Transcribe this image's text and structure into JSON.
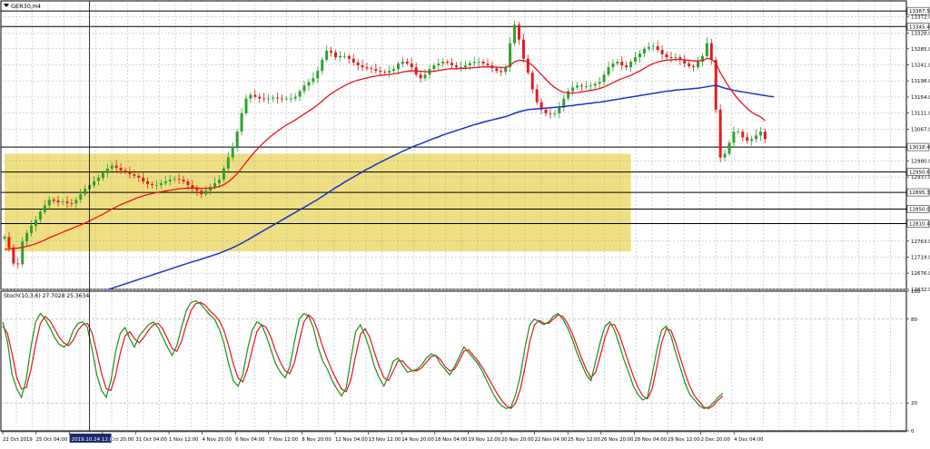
{
  "window": {
    "symbol_title": "GER30,H4"
  },
  "colors": {
    "bull": "#2e9f2e",
    "bear": "#e01b1b",
    "ma_fast": "#e8111e",
    "ma_slow": "#1533c9",
    "stoch_main": "#1a8f1a",
    "stoch_signal": "#e8111e",
    "zone": "#eedf82",
    "grid": "#a9a9a9"
  },
  "chart_data": [
    {
      "type": "candlestick",
      "symbol": "GER30,H4",
      "ylim": [
        12632.0,
        13415.0
      ],
      "y_ticks": [
        "13372.0",
        "13328.0",
        "13285.0",
        "13241.0",
        "13198.0",
        "13154.0",
        "13111.0",
        "13067.0",
        "12980.0",
        "12937.0",
        "12850.0",
        "12763.0",
        "12719.0",
        "12676.0",
        "12632.0"
      ],
      "horizontal_levels": [
        {
          "label": "13387.5",
          "value": 13387.5
        },
        {
          "label": "13345.4",
          "value": 13345.4
        },
        {
          "label": "13018.4",
          "value": 13018.4
        },
        {
          "label": "12950.6",
          "value": 12950.6
        },
        {
          "label": "12895.3",
          "value": 12895.3
        },
        {
          "label": "12850.0",
          "value": 12850.0
        },
        {
          "label": "12810.4",
          "value": 12810.4
        }
      ],
      "zone": {
        "x_from": 0,
        "x_to": 140,
        "y_from": 12735,
        "y_to": 13000
      },
      "x_ticks": [
        "22 Oct 2019",
        "25 Oct 04:00",
        "28 Oct 12:00",
        "29 Oct 20:00",
        "31 Oct 04:00",
        "1 Nov 12:00",
        "4 Nov 20:00",
        "6 Nov 04:00",
        "7 Nov 12:00",
        "8 Nov 20:00",
        "12 Nov 04:00",
        "13 Nov 12:00",
        "14 Nov 20:00",
        "18 Nov 04:00",
        "19 Nov 12:00",
        "20 Nov 20:00",
        "22 Nov 04:00",
        "25 Nov 12:00",
        "26 Nov 20:00",
        "28 Nov 04:00",
        "29 Nov 12:00",
        "2 Dec 20:00",
        "4 Dec 04:00"
      ],
      "crosshair_label": "2019.10.24 12:00",
      "crosshair_x": 19,
      "closes": [
        12775,
        12745,
        12702,
        12700,
        12762,
        12785,
        12805,
        12820,
        12843,
        12860,
        12875,
        12872,
        12868,
        12870,
        12866,
        12865,
        12875,
        12890,
        12905,
        12915,
        12925,
        12935,
        12948,
        12960,
        12968,
        12962,
        12955,
        12950,
        12945,
        12940,
        12935,
        12925,
        12918,
        12915,
        12915,
        12920,
        12925,
        12930,
        12932,
        12930,
        12925,
        12915,
        12905,
        12900,
        12890,
        12900,
        12910,
        12920,
        12930,
        12960,
        12990,
        13020,
        13060,
        13110,
        13150,
        13160,
        13155,
        13150,
        13148,
        13150,
        13152,
        13150,
        13149,
        13150,
        13150,
        13155,
        13170,
        13185,
        13195,
        13205,
        13225,
        13255,
        13280,
        13275,
        13262,
        13265,
        13265,
        13258,
        13248,
        13240,
        13235,
        13232,
        13230,
        13225,
        13222,
        13220,
        13225,
        13230,
        13245,
        13250,
        13245,
        13235,
        13215,
        13205,
        13215,
        13230,
        13240,
        13245,
        13250,
        13247,
        13240,
        13235,
        13235,
        13240,
        13246,
        13249,
        13250,
        13245,
        13240,
        13232,
        13225,
        13222,
        13235,
        13300,
        13350,
        13310,
        13258,
        13220,
        13175,
        13140,
        13120,
        13110,
        13108,
        13110,
        13125,
        13150,
        13170,
        13180,
        13185,
        13183,
        13183,
        13185,
        13190,
        13195,
        13215,
        13235,
        13245,
        13250,
        13240,
        13235,
        13250,
        13262,
        13272,
        13285,
        13290,
        13292,
        13282,
        13270,
        13262,
        13260,
        13262,
        13255,
        13245,
        13238,
        13235,
        13250,
        13265,
        13300,
        13255,
        13120,
        12990,
        13000,
        13030,
        13060,
        13060,
        13045,
        13035,
        13040,
        13050,
        13060,
        13040
      ],
      "opens": [
        12770,
        12774,
        12746,
        12702,
        12700,
        12762,
        12785,
        12804,
        12821,
        12842,
        12860,
        12876,
        12873,
        12868,
        12870,
        12866,
        12865,
        12876,
        12890,
        12904,
        12914,
        12926,
        12934,
        12948,
        12960,
        12968,
        12962,
        12955,
        12950,
        12944,
        12940,
        12935,
        12925,
        12918,
        12915,
        12915,
        12920,
        12925,
        12930,
        12932,
        12930,
        12925,
        12915,
        12905,
        12900,
        12890,
        12900,
        12910,
        12920,
        12930,
        12960,
        12990,
        13020,
        13060,
        13110,
        13150,
        13160,
        13155,
        13150,
        13148,
        13150,
        13152,
        13150,
        13149,
        13150,
        13150,
        13155,
        13170,
        13185,
        13195,
        13205,
        13225,
        13255,
        13280,
        13275,
        13262,
        13265,
        13265,
        13258,
        13248,
        13240,
        13235,
        13232,
        13230,
        13225,
        13222,
        13220,
        13225,
        13230,
        13245,
        13250,
        13245,
        13235,
        13215,
        13205,
        13215,
        13230,
        13240,
        13245,
        13250,
        13247,
        13240,
        13235,
        13235,
        13240,
        13246,
        13249,
        13250,
        13245,
        13240,
        13232,
        13225,
        13222,
        13235,
        13300,
        13350,
        13310,
        13258,
        13220,
        13175,
        13140,
        13120,
        13110,
        13108,
        13110,
        13125,
        13150,
        13170,
        13180,
        13185,
        13183,
        13183,
        13185,
        13190,
        13195,
        13215,
        13235,
        13245,
        13250,
        13240,
        13235,
        13250,
        13262,
        13272,
        13285,
        13290,
        13292,
        13282,
        13270,
        13262,
        13260,
        13262,
        13255,
        13245,
        13238,
        13235,
        13250,
        13265,
        13300,
        13255,
        13120,
        12990,
        13000,
        13030,
        13060,
        13060,
        13045,
        13035,
        13040,
        13050,
        13060
      ],
      "ma_fast": [
        12740,
        12742,
        12743,
        12744,
        12746,
        12749,
        12752,
        12756,
        12761,
        12766,
        12772,
        12777,
        12782,
        12787,
        12792,
        12797,
        12802,
        12807,
        12812,
        12818,
        12824,
        12830,
        12836,
        12843,
        12850,
        12856,
        12862,
        12867,
        12872,
        12877,
        12882,
        12886,
        12889,
        12892,
        12895,
        12897,
        12899,
        12901,
        12903,
        12905,
        12906,
        12907,
        12907,
        12907,
        12906,
        12906,
        12907,
        12908,
        12911,
        12916,
        12924,
        12934,
        12946,
        12961,
        12977,
        12992,
        13006,
        13019,
        13031,
        13042,
        13052,
        13061,
        13070,
        13078,
        13085,
        13092,
        13100,
        13108,
        13116,
        13124,
        13133,
        13143,
        13154,
        13163,
        13171,
        13178,
        13185,
        13191,
        13196,
        13200,
        13203,
        13206,
        13209,
        13211,
        13213,
        13214,
        13215,
        13217,
        13219,
        13222,
        13224,
        13225,
        13225,
        13224,
        13223,
        13223,
        13224,
        13226,
        13228,
        13230,
        13231,
        13231,
        13232,
        13232,
        13233,
        13234,
        13235,
        13236,
        13236,
        13236,
        13235,
        13234,
        13234,
        13240,
        13250,
        13254,
        13253,
        13249,
        13240,
        13228,
        13215,
        13202,
        13190,
        13180,
        13172,
        13167,
        13165,
        13165,
        13166,
        13168,
        13170,
        13172,
        13174,
        13177,
        13181,
        13187,
        13193,
        13199,
        13204,
        13208,
        13213,
        13219,
        13225,
        13232,
        13239,
        13245,
        13249,
        13252,
        13254,
        13255,
        13256,
        13256,
        13255,
        13254,
        13252,
        13252,
        13253,
        13258,
        13258,
        13245,
        13220,
        13200,
        13180,
        13163,
        13148,
        13135,
        13123,
        13113,
        13106,
        13100,
        13090
      ],
      "ma_slow": [
        12562,
        12564,
        12566,
        12568,
        12570,
        12573,
        12576,
        12579,
        12582,
        12585,
        12588,
        12591,
        12594,
        12597,
        12600,
        12603,
        12606,
        12609,
        12613,
        12616,
        12620,
        12623,
        12627,
        12631,
        12635,
        12639,
        12643,
        12647,
        12651,
        12655,
        12659,
        12663,
        12667,
        12671,
        12675,
        12679,
        12683,
        12687,
        12691,
        12695,
        12699,
        12703,
        12707,
        12710,
        12714,
        12718,
        12722,
        12726,
        12730,
        12735,
        12740,
        12745,
        12751,
        12757,
        12764,
        12771,
        12778,
        12785,
        12792,
        12799,
        12806,
        12813,
        12820,
        12827,
        12834,
        12841,
        12848,
        12855,
        12862,
        12869,
        12876,
        12884,
        12892,
        12900,
        12908,
        12915,
        12923,
        12930,
        12937,
        12944,
        12951,
        12958,
        12964,
        12971,
        12977,
        12983,
        12989,
        12995,
        13001,
        13007,
        13012,
        13018,
        13023,
        13027,
        13032,
        13037,
        13042,
        13046,
        13051,
        13055,
        13059,
        13063,
        13067,
        13071,
        13075,
        13079,
        13082,
        13086,
        13089,
        13092,
        13095,
        13098,
        13101,
        13105,
        13110,
        13114,
        13117,
        13120,
        13121,
        13122,
        13123,
        13124,
        13125,
        13126,
        13127,
        13128,
        13130,
        13131,
        13133,
        13134,
        13136,
        13137,
        13139,
        13140,
        13142,
        13144,
        13146,
        13148,
        13150,
        13152,
        13154,
        13156,
        13158,
        13160,
        13162,
        13164,
        13166,
        13168,
        13170,
        13171,
        13173,
        13174,
        13175,
        13176,
        13177,
        13178,
        13180,
        13182,
        13184,
        13186,
        13182,
        13178,
        13175,
        13172,
        13170,
        13168,
        13166,
        13164,
        13162,
        13160,
        13158,
        13156,
        13155
      ]
    },
    {
      "type": "line",
      "title": "Stoch(10,3,6) 27.7028 25.3634",
      "ylim": [
        0,
        100
      ],
      "y_ticks": [
        "100",
        "80",
        "20",
        "0"
      ],
      "levels": [
        80,
        20
      ],
      "series": [
        {
          "name": "main",
          "values": [
            78,
            64,
            40,
            30,
            24,
            37,
            60,
            78,
            84,
            80,
            74,
            67,
            62,
            60,
            63,
            72,
            77,
            78,
            74,
            58,
            40,
            29,
            24,
            36,
            57,
            70,
            74,
            66,
            60,
            68,
            72,
            76,
            78,
            74,
            67,
            60,
            54,
            61,
            74,
            86,
            92,
            93,
            91,
            87,
            83,
            80,
            73,
            63,
            48,
            36,
            32,
            40,
            58,
            72,
            78,
            76,
            68,
            58,
            48,
            42,
            38,
            46,
            64,
            80,
            84,
            82,
            74,
            60,
            50,
            44,
            36,
            30,
            25,
            31,
            52,
            71,
            76,
            68,
            58,
            46,
            38,
            32,
            40,
            50,
            52,
            47,
            42,
            43,
            44,
            47,
            52,
            55,
            54,
            48,
            44,
            40,
            46,
            53,
            60,
            56,
            52,
            48,
            42,
            35,
            28,
            22,
            18,
            16,
            17,
            26,
            40,
            60,
            76,
            80,
            78,
            76,
            78,
            82,
            84,
            80,
            74,
            66,
            56,
            48,
            40,
            36,
            50,
            64,
            75,
            78,
            72,
            62,
            51,
            42,
            32,
            26,
            22,
            24,
            40,
            58,
            72,
            75,
            68,
            56,
            45,
            34,
            26,
            22,
            18,
            16,
            17,
            20,
            24,
            27
          ]
        },
        {
          "name": "signal",
          "values": [
            75,
            70,
            55,
            38,
            30,
            31,
            44,
            62,
            77,
            82,
            79,
            73,
            67,
            63,
            61,
            65,
            72,
            76,
            77,
            70,
            56,
            41,
            30,
            29,
            40,
            56,
            68,
            71,
            66,
            63,
            67,
            72,
            76,
            77,
            73,
            66,
            59,
            57,
            64,
            76,
            86,
            91,
            92,
            90,
            86,
            83,
            79,
            72,
            61,
            48,
            38,
            35,
            44,
            58,
            71,
            76,
            74,
            67,
            57,
            49,
            43,
            41,
            49,
            64,
            78,
            83,
            80,
            71,
            60,
            51,
            43,
            36,
            30,
            28,
            37,
            54,
            69,
            73,
            67,
            56,
            46,
            38,
            36,
            43,
            50,
            50,
            46,
            43,
            43,
            45,
            49,
            53,
            54,
            51,
            46,
            43,
            44,
            50,
            57,
            58,
            54,
            50,
            45,
            39,
            33,
            27,
            22,
            18,
            16,
            20,
            30,
            46,
            64,
            76,
            79,
            77,
            77,
            80,
            83,
            82,
            77,
            70,
            61,
            52,
            44,
            38,
            42,
            54,
            67,
            76,
            76,
            69,
            59,
            49,
            39,
            31,
            25,
            23,
            30,
            46,
            63,
            73,
            72,
            63,
            52,
            41,
            32,
            25,
            21,
            17,
            16,
            18,
            22,
            25
          ]
        }
      ]
    }
  ]
}
